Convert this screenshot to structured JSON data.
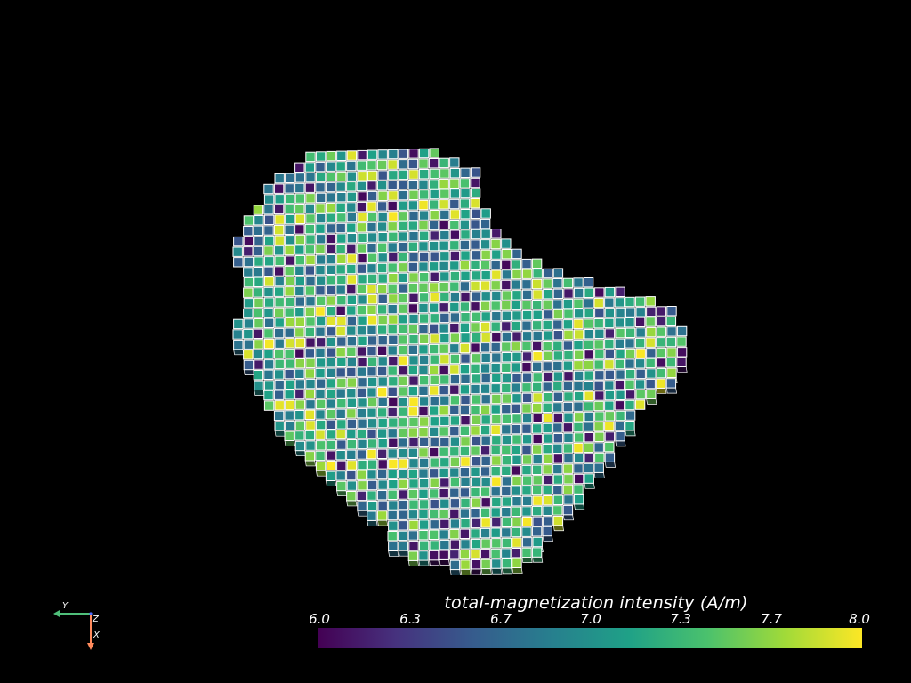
{
  "scalar_bar": {
    "title": "total-magnetization intensity (A/m)",
    "range": [
      6.0,
      8.0
    ],
    "tick_labels": [
      "6.0",
      "6.3",
      "6.7",
      "7.0",
      "7.3",
      "7.7",
      "8.0"
    ],
    "colormap": "viridis",
    "colormap_stops": [
      "#440154",
      "#46327e",
      "#365c8d",
      "#277f8e",
      "#1fa187",
      "#4ac16d",
      "#a0da39",
      "#fde725"
    ]
  },
  "orientation_axes": {
    "y_label": "Y",
    "z_label": "Z",
    "x_label": "X",
    "y_color": "#4fbf7a",
    "z_color": "#4a6cff",
    "x_color": "#ff8a5c"
  },
  "mesh": {
    "edge_color": "#ffffff",
    "value_range": [
      6.0,
      8.0
    ]
  }
}
